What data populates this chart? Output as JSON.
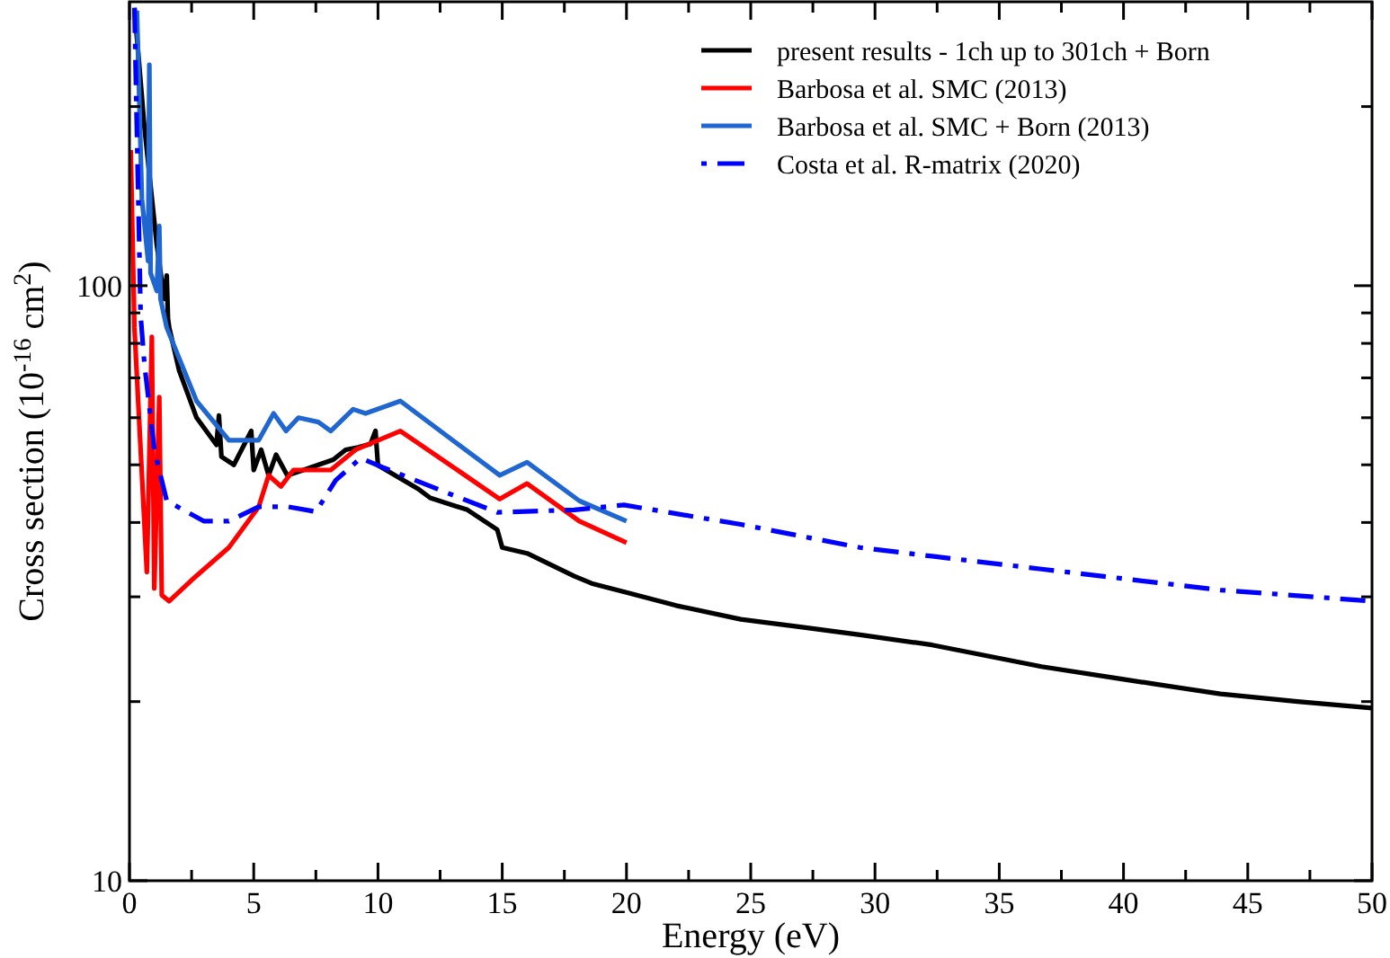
{
  "chart_data": {
    "type": "line",
    "xlabel": "Energy (eV)",
    "ylabel": "Cross section (10$^{-16}$ cm$^{2}$)",
    "log": "y",
    "grid": false,
    "legend": "top right",
    "marker": "none",
    "xlim": [
      0,
      50
    ],
    "ylim": [
      10,
      300
    ],
    "xticks": [
      0,
      {
        "value": 2.5,
        "label": null
      },
      5,
      {
        "value": 7.5,
        "label": null
      },
      10,
      {
        "value": 12.5,
        "label": null
      },
      15,
      {
        "value": 17.5,
        "label": null
      },
      20,
      {
        "value": 22.5,
        "label": null
      },
      25,
      {
        "value": 27.5,
        "label": null
      },
      30,
      {
        "value": 32.5,
        "label": null
      },
      35,
      {
        "value": 37.5,
        "label": null
      },
      40,
      {
        "value": 42.5,
        "label": null
      },
      45,
      {
        "value": 47.5,
        "label": null
      },
      50
    ],
    "yticks": [
      10,
      {
        "value": 20,
        "label": null
      },
      {
        "value": 30,
        "label": null
      },
      {
        "value": 40,
        "label": null
      },
      {
        "value": 50,
        "label": null
      },
      {
        "value": 60,
        "label": null
      },
      {
        "value": 70,
        "label": null
      },
      {
        "value": 80,
        "label": null
      },
      {
        "value": 90,
        "label": null
      },
      100,
      {
        "value": 200,
        "label": null
      }
    ],
    "series": [
      {
        "name": "present results -  1ch up to 301ch + Born",
        "color": "#000000",
        "line_style": "solid",
        "x": [
          0.2,
          0.6,
          1.1,
          1.4,
          1.5,
          1.55,
          1.6,
          2.0,
          2.7,
          3.5,
          3.6,
          3.7,
          4.2,
          4.9,
          5.0,
          5.3,
          5.6,
          5.9,
          6.35,
          7.0,
          7.6,
          8.2,
          8.7,
          9.2,
          9.7,
          9.9,
          10.0,
          11.6,
          12.1,
          13.6,
          14.8,
          15.0,
          16.0,
          17.9,
          18.6,
          20.0,
          22.0,
          24.6,
          27.0,
          29.4,
          32.3,
          36.7,
          40.0,
          43.9,
          47.0,
          50.0
        ],
        "values": [
          293,
          185,
          117,
          95,
          104,
          88,
          85,
          72,
          60,
          54,
          60.5,
          51.6,
          50,
          57,
          49,
          53,
          48,
          52,
          48,
          49,
          50,
          51,
          53,
          53.5,
          54.2,
          57,
          49.9,
          45.6,
          44,
          42,
          38.9,
          36.3,
          35.5,
          32.5,
          31.6,
          30.5,
          29,
          27.5,
          26.7,
          25.9,
          24.9,
          22.9,
          21.8,
          20.6,
          20,
          19.5
        ]
      },
      {
        "name": "Barbosa  et al. SMC (2013)",
        "color": "#ff0000",
        "line_style": "solid",
        "x": [
          0.05,
          0.2,
          0.7,
          0.9,
          1.0,
          1.2,
          1.3,
          1.6,
          2.5,
          4.0,
          5.2,
          5.6,
          6.1,
          6.6,
          8.1,
          9.1,
          10.9,
          14.9,
          16.0,
          18.1,
          20.0
        ],
        "values": [
          169,
          85,
          33,
          82,
          31,
          65,
          30.2,
          29.5,
          32,
          36.3,
          42.5,
          48,
          46,
          49,
          49,
          53,
          57,
          43.8,
          46.5,
          40.2,
          37
        ]
      },
      {
        "name": "Barbosa  et al. SMC + Born (2013)",
        "color": "#1f66d0",
        "line_style": "solid",
        "x": [
          0.3,
          0.5,
          0.75,
          0.8,
          0.85,
          1.1,
          1.2,
          1.25,
          1.5,
          2.7,
          4.0,
          5.2,
          5.8,
          6.3,
          6.8,
          7.6,
          8.1,
          9.0,
          9.5,
          10.9,
          14.9,
          16.0,
          18.1,
          20.0
        ],
        "values": [
          290,
          140,
          110,
          235,
          105,
          98,
          126,
          95,
          85,
          64,
          55,
          55,
          61,
          57,
          60,
          59,
          57,
          62,
          61,
          64,
          48,
          50.5,
          43.5,
          40.2
        ]
      },
      {
        "name": "Costa et al.  R-matrix (2020)",
        "color": "#0000ff",
        "line_style": "dashdot",
        "x": [
          0.2,
          0.45,
          0.6,
          1.0,
          1.5,
          3.0,
          4.0,
          5.2,
          6.4,
          7.5,
          8.3,
          9.3,
          10.2,
          12.7,
          14.8,
          17.9,
          19.9,
          24.6,
          29.4,
          32.3,
          36.7,
          43.9,
          50.0
        ],
        "values": [
          293,
          89,
          74,
          53,
          43.5,
          40.2,
          40.2,
          42.5,
          42.5,
          41.7,
          47.1,
          51.3,
          49.5,
          45,
          41.6,
          42,
          42.8,
          39.7,
          36.3,
          35.1,
          33.4,
          30.8,
          29.5
        ]
      }
    ]
  }
}
